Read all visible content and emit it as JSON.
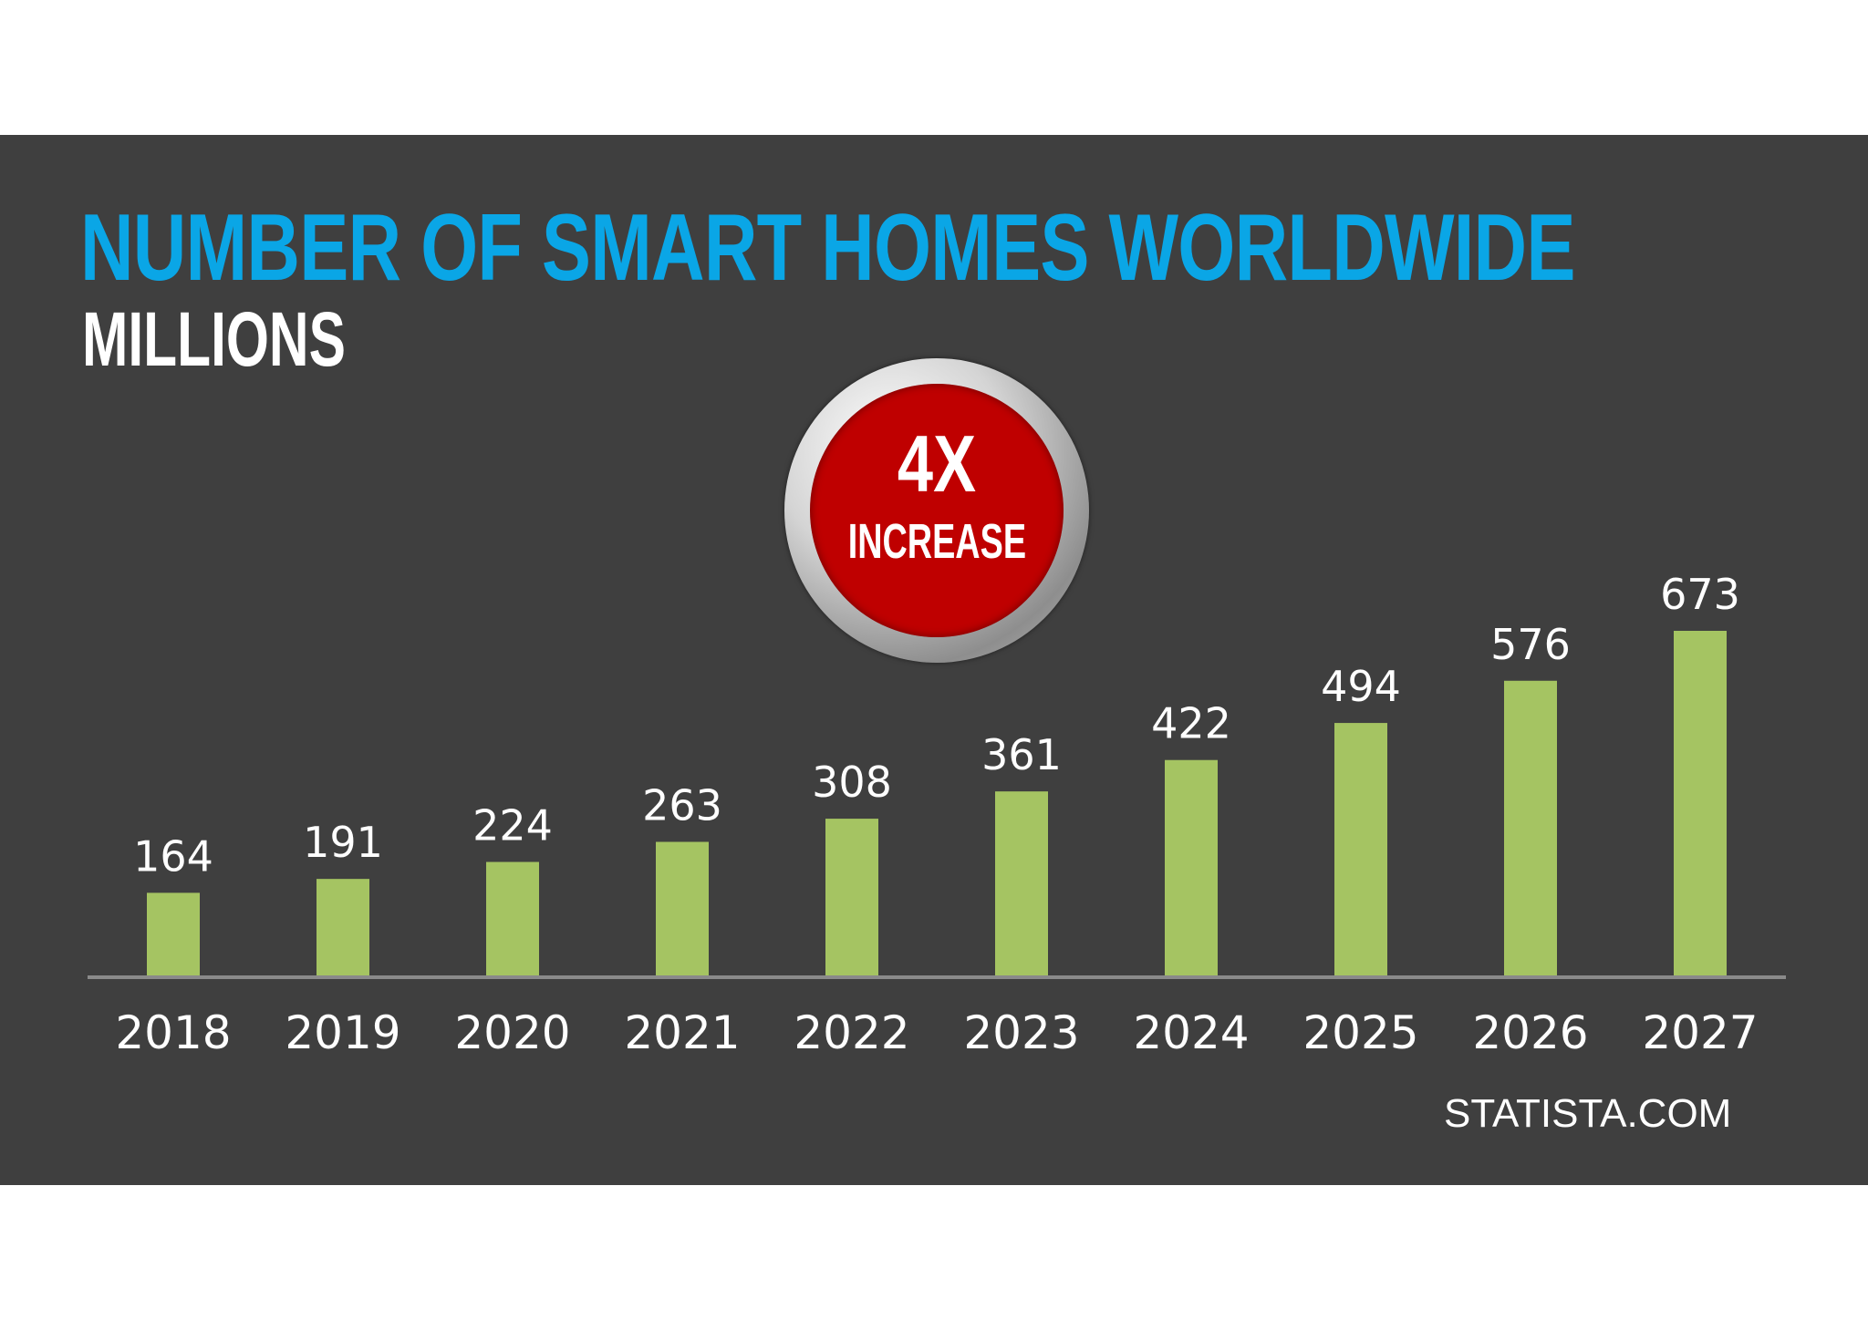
{
  "chart_data": {
    "type": "bar",
    "title": "NUMBER OF SMART HOMES WORLDWIDE",
    "subtitle": "MILLIONS",
    "categories": [
      "2018",
      "2019",
      "2020",
      "2021",
      "2022",
      "2023",
      "2024",
      "2025",
      "2026",
      "2027"
    ],
    "values": [
      164,
      191,
      224,
      263,
      308,
      361,
      422,
      494,
      576,
      673
    ],
    "xlabel": "",
    "ylabel": "",
    "ylim": [
      0,
      673
    ],
    "grid": false,
    "bar_color": "#a5c462",
    "axis_color": "#8a8a8a",
    "label_color": "#ffffff"
  },
  "badge": {
    "value": "4X",
    "label": "INCREASE",
    "color": "#bf0000"
  },
  "source": "STATISTA.COM",
  "colors": {
    "background": "#3f3f3f",
    "title": "#0aa6e6",
    "subtitle": "#ffffff"
  }
}
